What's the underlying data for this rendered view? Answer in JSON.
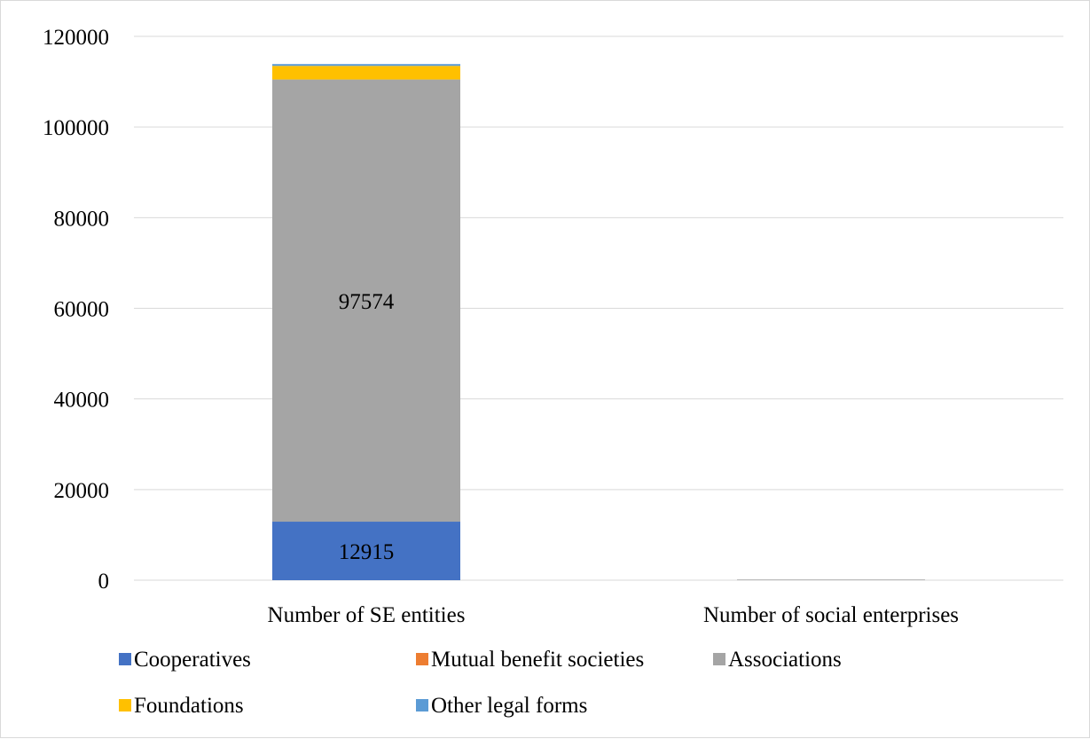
{
  "chart_data": {
    "type": "bar",
    "stacked": true,
    "categories": [
      "Number of SE entities",
      "Number of social enterprises"
    ],
    "series": [
      {
        "name": "Cooperatives",
        "color": "#4472C4",
        "values": [
          12915,
          0
        ],
        "data_labels": [
          "12915",
          ""
        ]
      },
      {
        "name": "Mutual benefit societies",
        "color": "#ED7D31",
        "values": [
          0,
          0
        ],
        "data_labels": [
          "",
          ""
        ]
      },
      {
        "name": "Associations",
        "color": "#A5A5A5",
        "values": [
          97574,
          150
        ],
        "data_labels": [
          "97574",
          ""
        ]
      },
      {
        "name": "Foundations",
        "color": "#FFC000",
        "values": [
          3000,
          0
        ],
        "data_labels": [
          "",
          ""
        ]
      },
      {
        "name": "Other legal forms",
        "color": "#5B9BD5",
        "values": [
          400,
          0
        ],
        "data_labels": [
          "",
          ""
        ]
      }
    ],
    "ylim": [
      0,
      120000
    ],
    "y_ticks": [
      "0",
      "20000",
      "40000",
      "60000",
      "80000",
      "100000",
      "120000"
    ],
    "grid": true,
    "legend_position": "bottom"
  }
}
